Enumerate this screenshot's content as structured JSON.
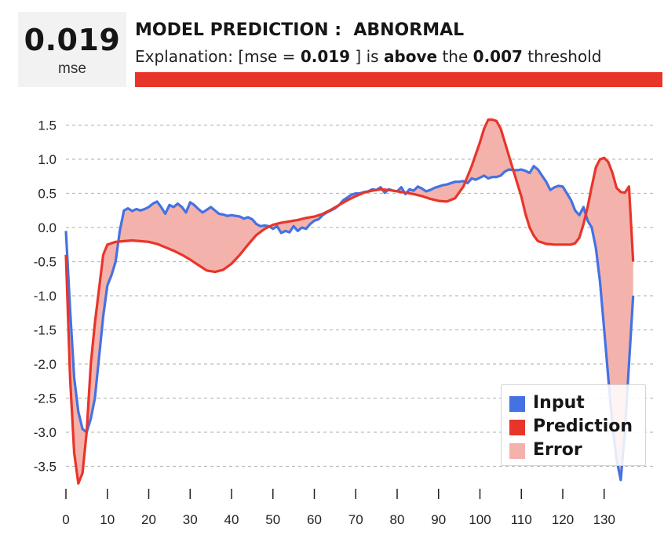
{
  "header": {
    "score_value": "0.019",
    "score_unit": "mse",
    "prediction_label": "MODEL PREDICTION :",
    "prediction_value": "ABNORMAL",
    "explanation": {
      "prefix": "Explanation: [mse = ",
      "mse": "0.019",
      "middle": " ] is ",
      "relation": "above",
      "the": " the ",
      "threshold": "0.007",
      "suffix": " threshold"
    },
    "status_color": "#e8352a"
  },
  "colors": {
    "input": "#4472e2",
    "prediction": "#e8352a",
    "error": "#f4b2ac",
    "grid": "#bdbdbd"
  },
  "legend": {
    "items": [
      {
        "label": "Input",
        "color": "#4472e2"
      },
      {
        "label": "Prediction",
        "color": "#e8352a"
      },
      {
        "label": "Error",
        "color": "#f4b2ac"
      }
    ],
    "position": "bottom-right"
  },
  "chart_data": {
    "type": "line",
    "title": "",
    "xlabel": "",
    "ylabel": "",
    "xlim": [
      0,
      140
    ],
    "ylim": [
      -3.85,
      1.65
    ],
    "grid": "horizontal-dashed",
    "xticks": [
      0,
      10,
      20,
      30,
      40,
      50,
      60,
      70,
      80,
      90,
      100,
      110,
      120,
      130
    ],
    "yticks": [
      1.5,
      1.0,
      0.5,
      0.0,
      -0.5,
      -1.0,
      -1.5,
      -2.0,
      -2.5,
      -3.0,
      -3.5
    ],
    "series": [
      {
        "name": "Input",
        "color": "#4472e2",
        "points": [
          [
            0,
            -0.05
          ],
          [
            1,
            -1.2
          ],
          [
            2,
            -2.2
          ],
          [
            3,
            -2.7
          ],
          [
            4,
            -2.95
          ],
          [
            5,
            -3.0
          ],
          [
            6,
            -2.8
          ],
          [
            7,
            -2.5
          ],
          [
            8,
            -1.9
          ],
          [
            9,
            -1.3
          ],
          [
            10,
            -0.85
          ],
          [
            11,
            -0.7
          ],
          [
            12,
            -0.5
          ],
          [
            13,
            -0.05
          ],
          [
            14,
            0.25
          ],
          [
            15,
            0.28
          ],
          [
            16,
            0.24
          ],
          [
            17,
            0.27
          ],
          [
            18,
            0.25
          ],
          [
            19,
            0.27
          ],
          [
            20,
            0.3
          ],
          [
            21,
            0.35
          ],
          [
            22,
            0.38
          ],
          [
            23,
            0.3
          ],
          [
            24,
            0.2
          ],
          [
            25,
            0.33
          ],
          [
            26,
            0.3
          ],
          [
            27,
            0.35
          ],
          [
            28,
            0.3
          ],
          [
            29,
            0.22
          ],
          [
            30,
            0.37
          ],
          [
            31,
            0.33
          ],
          [
            32,
            0.27
          ],
          [
            33,
            0.22
          ],
          [
            34,
            0.26
          ],
          [
            35,
            0.3
          ],
          [
            36,
            0.25
          ],
          [
            37,
            0.2
          ],
          [
            38,
            0.19
          ],
          [
            39,
            0.17
          ],
          [
            40,
            0.18
          ],
          [
            41,
            0.17
          ],
          [
            42,
            0.16
          ],
          [
            43,
            0.13
          ],
          [
            44,
            0.15
          ],
          [
            45,
            0.12
          ],
          [
            46,
            0.05
          ],
          [
            47,
            0.02
          ],
          [
            48,
            0.03
          ],
          [
            49,
            0.02
          ],
          [
            50,
            -0.02
          ],
          [
            51,
            0.02
          ],
          [
            52,
            -0.08
          ],
          [
            53,
            -0.05
          ],
          [
            54,
            -0.07
          ],
          [
            55,
            0.02
          ],
          [
            56,
            -0.05
          ],
          [
            57,
            0.0
          ],
          [
            58,
            -0.02
          ],
          [
            59,
            0.05
          ],
          [
            60,
            0.1
          ],
          [
            61,
            0.12
          ],
          [
            62,
            0.18
          ],
          [
            63,
            0.22
          ],
          [
            64,
            0.25
          ],
          [
            65,
            0.28
          ],
          [
            66,
            0.33
          ],
          [
            67,
            0.4
          ],
          [
            68,
            0.44
          ],
          [
            69,
            0.48
          ],
          [
            70,
            0.5
          ],
          [
            71,
            0.5
          ],
          [
            72,
            0.52
          ],
          [
            73,
            0.53
          ],
          [
            74,
            0.56
          ],
          [
            75,
            0.55
          ],
          [
            76,
            0.59
          ],
          [
            77,
            0.51
          ],
          [
            78,
            0.56
          ],
          [
            79,
            0.54
          ],
          [
            80,
            0.53
          ],
          [
            81,
            0.59
          ],
          [
            82,
            0.49
          ],
          [
            83,
            0.56
          ],
          [
            84,
            0.54
          ],
          [
            85,
            0.6
          ],
          [
            86,
            0.57
          ],
          [
            87,
            0.53
          ],
          [
            88,
            0.55
          ],
          [
            89,
            0.58
          ],
          [
            90,
            0.6
          ],
          [
            91,
            0.62
          ],
          [
            92,
            0.63
          ],
          [
            93,
            0.65
          ],
          [
            94,
            0.67
          ],
          [
            95,
            0.67
          ],
          [
            96,
            0.68
          ],
          [
            97,
            0.65
          ],
          [
            98,
            0.72
          ],
          [
            99,
            0.7
          ],
          [
            100,
            0.73
          ],
          [
            101,
            0.76
          ],
          [
            102,
            0.72
          ],
          [
            103,
            0.74
          ],
          [
            104,
            0.74
          ],
          [
            105,
            0.76
          ],
          [
            106,
            0.82
          ],
          [
            107,
            0.85
          ],
          [
            108,
            0.84
          ],
          [
            109,
            0.84
          ],
          [
            110,
            0.85
          ],
          [
            111,
            0.83
          ],
          [
            112,
            0.8
          ],
          [
            113,
            0.9
          ],
          [
            114,
            0.85
          ],
          [
            115,
            0.76
          ],
          [
            116,
            0.67
          ],
          [
            117,
            0.55
          ],
          [
            118,
            0.59
          ],
          [
            119,
            0.61
          ],
          [
            120,
            0.6
          ],
          [
            121,
            0.5
          ],
          [
            122,
            0.4
          ],
          [
            123,
            0.25
          ],
          [
            124,
            0.18
          ],
          [
            125,
            0.3
          ],
          [
            126,
            0.1
          ],
          [
            127,
            0.0
          ],
          [
            128,
            -0.3
          ],
          [
            129,
            -0.8
          ],
          [
            130,
            -1.5
          ],
          [
            131,
            -2.2
          ],
          [
            132,
            -2.9
          ],
          [
            133,
            -3.4
          ],
          [
            134,
            -3.7
          ],
          [
            135,
            -3.0
          ],
          [
            136,
            -2.0
          ],
          [
            137,
            -1.0
          ]
        ]
      },
      {
        "name": "Prediction",
        "color": "#e8352a",
        "points": [
          [
            0,
            -0.4
          ],
          [
            1,
            -2.2
          ],
          [
            2,
            -3.3
          ],
          [
            3,
            -3.75
          ],
          [
            4,
            -3.6
          ],
          [
            5,
            -3.0
          ],
          [
            6,
            -2.0
          ],
          [
            7,
            -1.4
          ],
          [
            8,
            -0.9
          ],
          [
            9,
            -0.4
          ],
          [
            10,
            -0.25
          ],
          [
            12,
            -0.21
          ],
          [
            14,
            -0.2
          ],
          [
            16,
            -0.19
          ],
          [
            18,
            -0.2
          ],
          [
            20,
            -0.21
          ],
          [
            22,
            -0.24
          ],
          [
            24,
            -0.29
          ],
          [
            26,
            -0.34
          ],
          [
            28,
            -0.4
          ],
          [
            30,
            -0.47
          ],
          [
            32,
            -0.55
          ],
          [
            34,
            -0.63
          ],
          [
            36,
            -0.65
          ],
          [
            38,
            -0.62
          ],
          [
            40,
            -0.53
          ],
          [
            42,
            -0.4
          ],
          [
            44,
            -0.25
          ],
          [
            46,
            -0.11
          ],
          [
            48,
            -0.02
          ],
          [
            50,
            0.04
          ],
          [
            52,
            0.07
          ],
          [
            54,
            0.09
          ],
          [
            56,
            0.11
          ],
          [
            58,
            0.14
          ],
          [
            60,
            0.16
          ],
          [
            62,
            0.2
          ],
          [
            64,
            0.26
          ],
          [
            66,
            0.33
          ],
          [
            68,
            0.4
          ],
          [
            70,
            0.46
          ],
          [
            72,
            0.51
          ],
          [
            74,
            0.54
          ],
          [
            76,
            0.56
          ],
          [
            78,
            0.55
          ],
          [
            80,
            0.53
          ],
          [
            82,
            0.51
          ],
          [
            84,
            0.49
          ],
          [
            86,
            0.46
          ],
          [
            88,
            0.42
          ],
          [
            90,
            0.39
          ],
          [
            92,
            0.38
          ],
          [
            94,
            0.43
          ],
          [
            96,
            0.6
          ],
          [
            98,
            0.9
          ],
          [
            100,
            1.25
          ],
          [
            101,
            1.45
          ],
          [
            102,
            1.58
          ],
          [
            103,
            1.58
          ],
          [
            104,
            1.56
          ],
          [
            105,
            1.45
          ],
          [
            106,
            1.25
          ],
          [
            108,
            0.85
          ],
          [
            110,
            0.45
          ],
          [
            111,
            0.2
          ],
          [
            112,
            0.0
          ],
          [
            113,
            -0.12
          ],
          [
            114,
            -0.2
          ],
          [
            116,
            -0.24
          ],
          [
            118,
            -0.25
          ],
          [
            120,
            -0.25
          ],
          [
            122,
            -0.25
          ],
          [
            123,
            -0.23
          ],
          [
            124,
            -0.15
          ],
          [
            125,
            0.05
          ],
          [
            126,
            0.3
          ],
          [
            127,
            0.6
          ],
          [
            128,
            0.88
          ],
          [
            129,
            1.0
          ],
          [
            130,
            1.02
          ],
          [
            131,
            0.96
          ],
          [
            132,
            0.8
          ],
          [
            133,
            0.58
          ],
          [
            134,
            0.52
          ],
          [
            135,
            0.51
          ],
          [
            136,
            0.6
          ],
          [
            137,
            -0.5
          ]
        ]
      }
    ],
    "error_band": {
      "name": "Error",
      "between": [
        "Input",
        "Prediction"
      ],
      "color": "#f4b2ac"
    }
  }
}
